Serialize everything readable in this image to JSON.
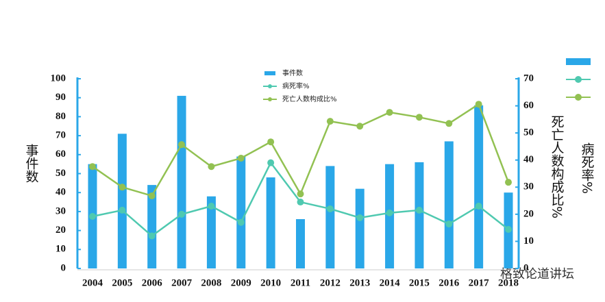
{
  "chart_data": {
    "type": "bar_line",
    "ylabel": "事件数",
    "y2labels": [
      "死亡人数构成比%",
      "病死率%"
    ],
    "watermark": "格致论道讲坛",
    "categories": [
      "2004",
      "2005",
      "2006",
      "2007",
      "2008",
      "2009",
      "2010",
      "2011",
      "2012",
      "2013",
      "2014",
      "2015",
      "2016",
      "2017",
      "2018"
    ],
    "series": [
      {
        "name": "事件数",
        "kind": "bar",
        "color": "#2aa7e8",
        "values": [
          55,
          71,
          44,
          91,
          38,
          59,
          48,
          26,
          54,
          42,
          55,
          56,
          67,
          86,
          40
        ]
      },
      {
        "name": "病死率%",
        "kind": "line",
        "axis": "y2",
        "color": "#4fc9b0",
        "values": [
          19.2,
          21.5,
          12,
          20,
          23,
          17,
          39,
          24.5,
          22,
          18.7,
          20.5,
          21.5,
          16.4,
          23,
          14.4
        ]
      },
      {
        "name": "死亡人数构成比%",
        "kind": "line",
        "axis": "y2",
        "color": "#92c152",
        "values": [
          37.6,
          30,
          26.8,
          45.7,
          37.6,
          40.7,
          46.7,
          27.5,
          54.3,
          52.5,
          57.6,
          55.8,
          53.5,
          60.6,
          31.8
        ]
      }
    ],
    "ylim": [
      0,
      100
    ],
    "yticks": [
      0,
      10,
      20,
      30,
      40,
      50,
      60,
      70,
      80,
      90,
      100
    ],
    "y2lim": [
      0,
      70
    ],
    "y2ticks": [
      0,
      10,
      20,
      30,
      40,
      50,
      60,
      70
    ],
    "grid": false
  }
}
